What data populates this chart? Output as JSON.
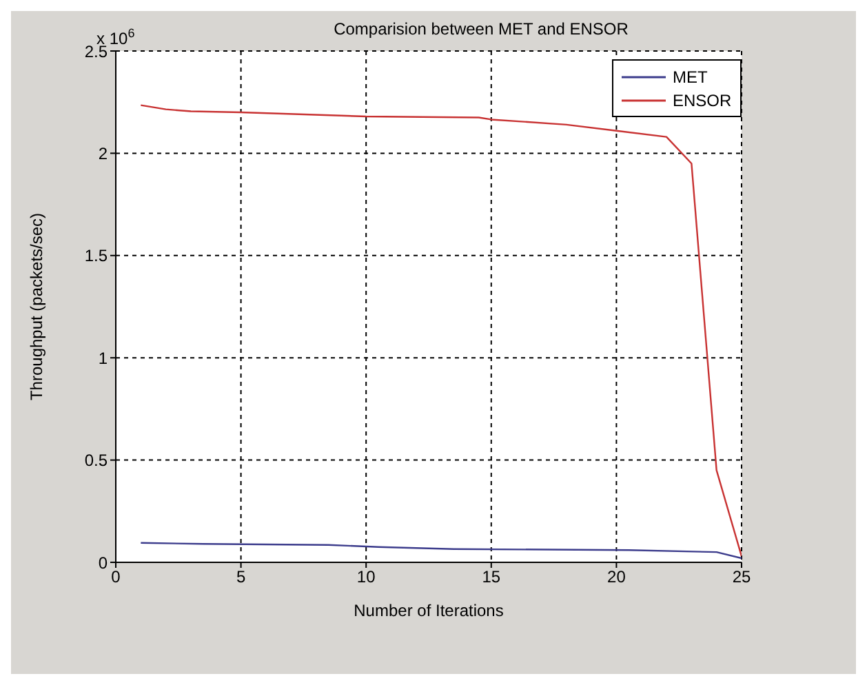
{
  "chart_data": {
    "type": "line",
    "title": "Comparision between MET and ENSOR",
    "xlabel": "Number of Iterations",
    "ylabel": "Throughput (packets/sec)",
    "annotations": [
      "x 10$^{6}$"
    ],
    "xlim": [
      0,
      25
    ],
    "xticks": [
      0,
      5,
      10,
      15,
      20,
      25
    ],
    "ylim": [
      0,
      2.5
    ],
    "yticks": [
      0,
      0.5,
      1,
      1.5,
      2,
      2.5
    ],
    "grid": true,
    "legend": "top right",
    "marker": "none",
    "line_style": "solid",
    "series": [
      {
        "name": "MET",
        "color": "#3c3c8c",
        "x": [
          1,
          3.5,
          8.5,
          10.5,
          13.5,
          20.5,
          24,
          25
        ],
        "values": [
          0.095,
          0.09,
          0.085,
          0.075,
          0.065,
          0.06,
          0.05,
          0.02
        ]
      },
      {
        "name": "ENSOR",
        "color": "#c83232",
        "x": [
          1,
          2,
          3,
          5,
          10,
          14.5,
          15,
          18,
          20,
          22,
          23,
          24,
          25
        ],
        "values": [
          2.235,
          2.215,
          2.205,
          2.2,
          2.18,
          2.175,
          2.165,
          2.14,
          2.11,
          2.08,
          1.95,
          0.45,
          0.03
        ]
      }
    ]
  }
}
